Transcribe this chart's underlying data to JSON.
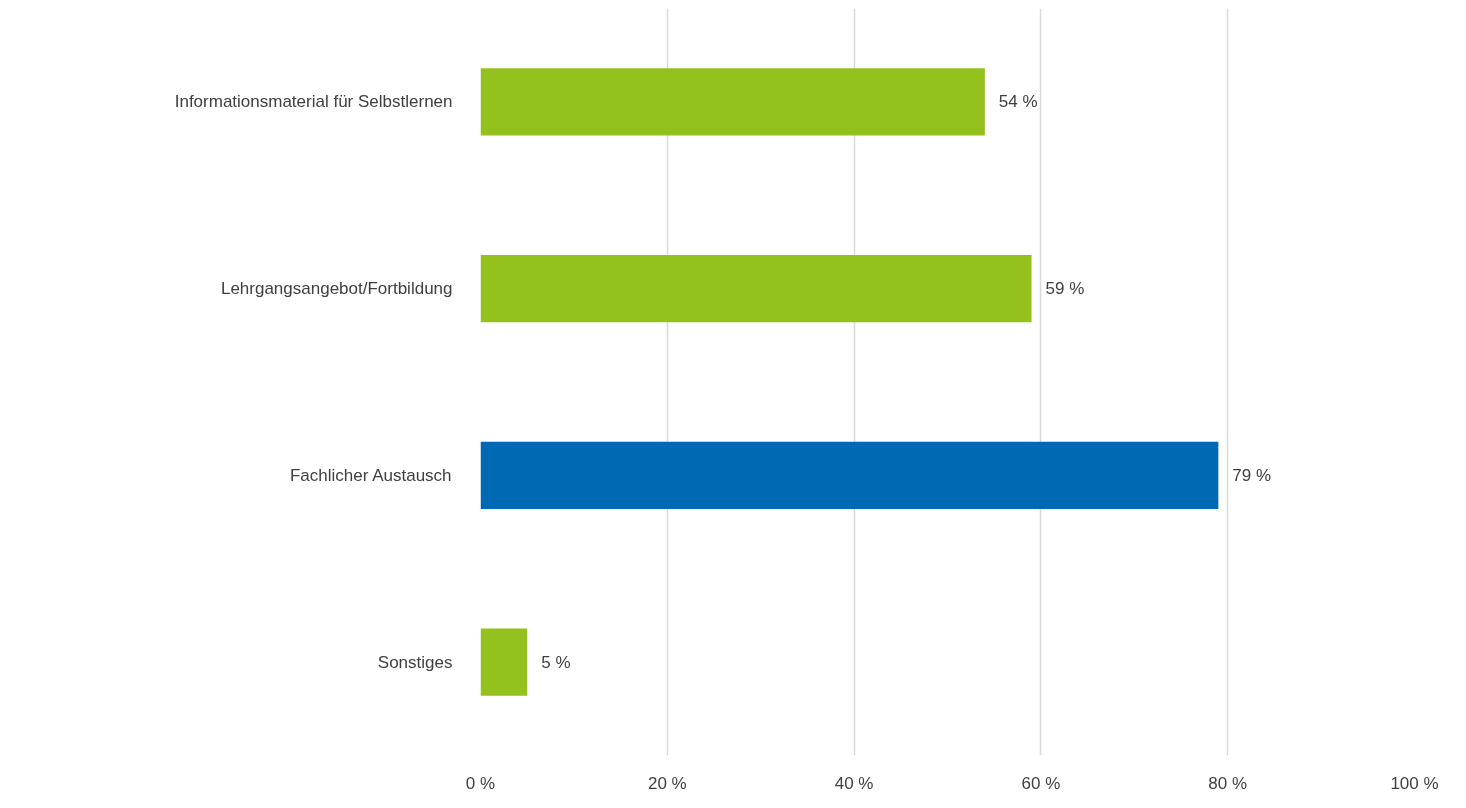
{
  "chart_data": {
    "type": "bar",
    "orientation": "horizontal",
    "categories": [
      "Informationsmaterial für Selbstlernen",
      "Lehrgangsangebot/Fortbildung",
      "Fachlicher Austausch",
      "Sonstiges"
    ],
    "values": [
      54,
      59,
      79,
      5
    ],
    "colors": [
      "#95c11f",
      "#95c11f",
      "#0069b4",
      "#95c11f"
    ],
    "value_labels": [
      "54 %",
      "59 %",
      "79 %",
      "5 %"
    ],
    "xlim": [
      0,
      100
    ],
    "xticks": [
      {
        "value": 0,
        "label": "0 %"
      },
      {
        "value": 20,
        "label": "20 %"
      },
      {
        "value": 40,
        "label": "40 %"
      },
      {
        "value": 60,
        "label": "60 %"
      },
      {
        "value": 80,
        "label": "80 %"
      },
      {
        "value": 100,
        "label": "100 %"
      }
    ],
    "grid": "x"
  }
}
